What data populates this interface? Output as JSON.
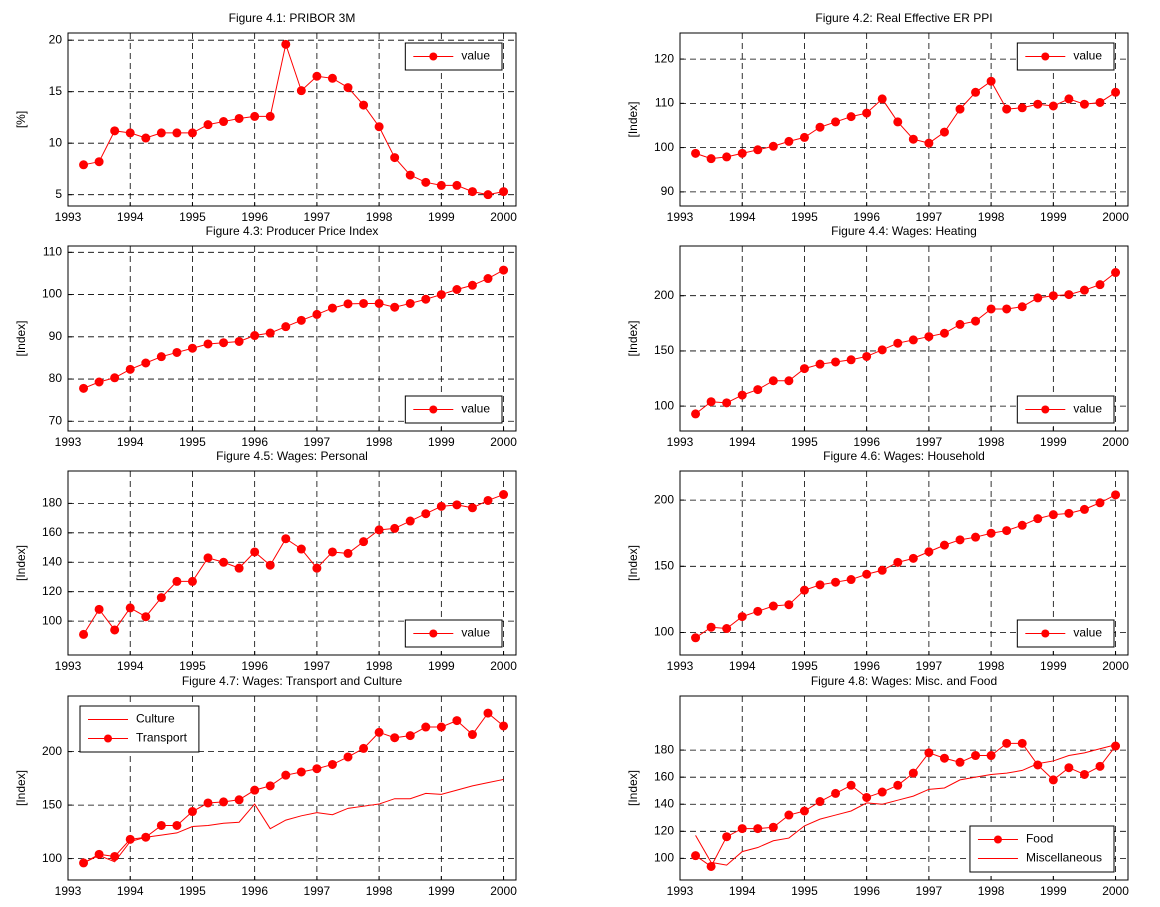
{
  "chart_data": [
    {
      "type": "line",
      "title": "Figure 4.1: PRIBOR 3M",
      "ylabel": "[%]",
      "x": [
        1993.25,
        1993.5,
        1993.75,
        1994,
        1994.25,
        1994.5,
        1994.75,
        1995,
        1995.25,
        1995.5,
        1995.75,
        1996,
        1996.25,
        1996.5,
        1996.75,
        1997,
        1997.25,
        1997.5,
        1997.75,
        1998,
        1998.25,
        1998.5,
        1998.75,
        1999,
        1999.25,
        1999.5,
        1999.75,
        2000
      ],
      "xlim": [
        1993,
        2000.2
      ],
      "xticks": [
        1993,
        1994,
        1995,
        1996,
        1997,
        1998,
        1999,
        2000
      ],
      "ylim": [
        3.9,
        20.7
      ],
      "yticks": [
        5,
        10,
        15,
        20
      ],
      "grid": true,
      "legend": "upper right",
      "series": [
        {
          "name": "value",
          "color": "#ff0000",
          "markers": true,
          "values": [
            7.9,
            8.2,
            11.2,
            11.0,
            10.5,
            11.0,
            11.0,
            11.0,
            11.8,
            12.1,
            12.4,
            12.6,
            12.6,
            19.6,
            15.1,
            16.5,
            16.3,
            15.4,
            13.7,
            11.6,
            8.6,
            6.9,
            6.2,
            5.9,
            5.9,
            5.3,
            5.0,
            5.3
          ]
        }
      ]
    },
    {
      "type": "line",
      "title": "Figure 4.2: Real Effective ER PPI",
      "ylabel": "[Index]",
      "x": [
        1993.25,
        1993.5,
        1993.75,
        1994,
        1994.25,
        1994.5,
        1994.75,
        1995,
        1995.25,
        1995.5,
        1995.75,
        1996,
        1996.25,
        1996.5,
        1996.75,
        1997,
        1997.25,
        1997.5,
        1997.75,
        1998,
        1998.25,
        1998.5,
        1998.75,
        1999,
        1999.25,
        1999.5,
        1999.75,
        2000
      ],
      "xlim": [
        1993,
        2000.2
      ],
      "xticks": [
        1993,
        1994,
        1995,
        1996,
        1997,
        1998,
        1999,
        2000
      ],
      "ylim": [
        86.8,
        125.9
      ],
      "yticks": [
        90,
        100,
        110,
        120
      ],
      "grid": true,
      "legend": "upper right",
      "series": [
        {
          "name": "value",
          "color": "#ff0000",
          "markers": true,
          "values": [
            98.7,
            97.5,
            97.9,
            98.7,
            99.5,
            100.3,
            101.4,
            102.3,
            104.6,
            105.8,
            107.0,
            107.8,
            111.0,
            105.8,
            101.9,
            101.0,
            103.5,
            108.7,
            112.5,
            115.0,
            108.7,
            109.0,
            109.8,
            109.4,
            111.0,
            109.8,
            110.2,
            112.5
          ]
        }
      ]
    },
    {
      "type": "line",
      "title": "Figure 4.3: Producer Price Index",
      "ylabel": "[Index]",
      "x": [
        1993.25,
        1993.5,
        1993.75,
        1994,
        1994.25,
        1994.5,
        1994.75,
        1995,
        1995.25,
        1995.5,
        1995.75,
        1996,
        1996.25,
        1996.5,
        1996.75,
        1997,
        1997.25,
        1997.5,
        1997.75,
        1998,
        1998.25,
        1998.5,
        1998.75,
        1999,
        1999.25,
        1999.5,
        1999.75,
        2000
      ],
      "xlim": [
        1993,
        2000.2
      ],
      "xticks": [
        1993,
        1994,
        1995,
        1996,
        1997,
        1998,
        1999,
        2000
      ],
      "ylim": [
        67.7,
        111.5
      ],
      "yticks": [
        70,
        80,
        90,
        100,
        110
      ],
      "grid": true,
      "legend": "lower right",
      "series": [
        {
          "name": "value",
          "color": "#ff0000",
          "markers": true,
          "values": [
            77.8,
            79.3,
            80.3,
            82.3,
            83.8,
            85.3,
            86.3,
            87.3,
            88.3,
            88.6,
            88.9,
            90.3,
            90.9,
            92.4,
            93.9,
            95.3,
            96.8,
            97.8,
            97.9,
            97.9,
            97.0,
            97.9,
            98.9,
            100.0,
            101.2,
            102.2,
            103.8,
            105.8
          ]
        }
      ]
    },
    {
      "type": "line",
      "title": "Figure 4.4: Wages: Heating",
      "ylabel": "[Index]",
      "x": [
        1993.25,
        1993.5,
        1993.75,
        1994,
        1994.25,
        1994.5,
        1994.75,
        1995,
        1995.25,
        1995.5,
        1995.75,
        1996,
        1996.25,
        1996.5,
        1996.75,
        1997,
        1997.25,
        1997.5,
        1997.75,
        1998,
        1998.25,
        1998.5,
        1998.75,
        1999,
        1999.25,
        1999.5,
        1999.75,
        2000
      ],
      "xlim": [
        1993,
        2000.2
      ],
      "xticks": [
        1993,
        1994,
        1995,
        1996,
        1997,
        1998,
        1999,
        2000
      ],
      "ylim": [
        77.5,
        245
      ],
      "yticks": [
        100,
        150,
        200
      ],
      "grid": true,
      "legend": "lower right",
      "series": [
        {
          "name": "value",
          "color": "#ff0000",
          "markers": true,
          "values": [
            93,
            104,
            103,
            110,
            115,
            123,
            123,
            134,
            138,
            140,
            142,
            145,
            151,
            157,
            160,
            163,
            166,
            174,
            177,
            188,
            188,
            190,
            198,
            200,
            201,
            205,
            210,
            221
          ]
        }
      ]
    },
    {
      "type": "line",
      "title": "Figure 4.5: Wages: Personal",
      "ylabel": "[Index]",
      "x": [
        1993.25,
        1993.5,
        1993.75,
        1994,
        1994.25,
        1994.5,
        1994.75,
        1995,
        1995.25,
        1995.5,
        1995.75,
        1996,
        1996.25,
        1996.5,
        1996.75,
        1997,
        1997.25,
        1997.5,
        1997.75,
        1998,
        1998.25,
        1998.5,
        1998.75,
        1999,
        1999.25,
        1999.5,
        1999.75,
        2000
      ],
      "xlim": [
        1993,
        2000.2
      ],
      "xticks": [
        1993,
        1994,
        1995,
        1996,
        1997,
        1998,
        1999,
        2000
      ],
      "ylim": [
        77,
        202
      ],
      "yticks": [
        100,
        120,
        140,
        160,
        180
      ],
      "grid": true,
      "legend": "lower right",
      "series": [
        {
          "name": "value",
          "color": "#ff0000",
          "markers": true,
          "values": [
            91,
            108,
            94,
            109,
            103,
            116,
            127,
            127,
            143,
            140,
            136,
            147,
            138,
            156,
            149,
            136,
            147,
            146,
            154,
            162,
            163,
            168,
            173,
            178,
            179,
            177,
            182,
            186
          ]
        }
      ]
    },
    {
      "type": "line",
      "title": "Figure 4.6: Wages: Household",
      "ylabel": "[Index]",
      "x": [
        1993.25,
        1993.5,
        1993.75,
        1994,
        1994.25,
        1994.5,
        1994.75,
        1995,
        1995.25,
        1995.5,
        1995.75,
        1996,
        1996.25,
        1996.5,
        1996.75,
        1997,
        1997.25,
        1997.5,
        1997.75,
        1998,
        1998.25,
        1998.5,
        1998.75,
        1999,
        1999.25,
        1999.5,
        1999.75,
        2000
      ],
      "xlim": [
        1993,
        2000.2
      ],
      "xticks": [
        1993,
        1994,
        1995,
        1996,
        1997,
        1998,
        1999,
        2000
      ],
      "ylim": [
        83,
        222
      ],
      "yticks": [
        100,
        150,
        200
      ],
      "grid": true,
      "legend": "lower right",
      "series": [
        {
          "name": "value",
          "color": "#ff0000",
          "markers": true,
          "values": [
            96,
            104,
            103,
            112,
            116,
            120,
            121,
            132,
            136,
            138,
            140,
            144,
            147,
            153,
            156,
            161,
            166,
            170,
            172,
            175,
            177,
            181,
            186,
            189,
            190,
            193,
            198,
            204
          ]
        }
      ]
    },
    {
      "type": "line",
      "title": "Figure 4.7: Wages: Transport and Culture",
      "ylabel": "[Index]",
      "x": [
        1993.25,
        1993.5,
        1993.75,
        1994,
        1994.25,
        1994.5,
        1994.75,
        1995,
        1995.25,
        1995.5,
        1995.75,
        1996,
        1996.25,
        1996.5,
        1996.75,
        1997,
        1997.25,
        1997.5,
        1997.75,
        1998,
        1998.25,
        1998.5,
        1998.75,
        1999,
        1999.25,
        1999.5,
        1999.75,
        2000
      ],
      "xlim": [
        1993,
        2000.2
      ],
      "xticks": [
        1993,
        1994,
        1995,
        1996,
        1997,
        1998,
        1999,
        2000
      ],
      "ylim": [
        80,
        252
      ],
      "yticks": [
        100,
        150,
        200
      ],
      "grid": true,
      "legend": "upper left",
      "series": [
        {
          "name": "Culture",
          "color": "#ff0000",
          "markers": false,
          "values": [
            96,
            103,
            97,
            116,
            120,
            122,
            124,
            130,
            131,
            133,
            134,
            151,
            128,
            136,
            140,
            143,
            141,
            147,
            149,
            151,
            156,
            156,
            161,
            160,
            164,
            168,
            171,
            174
          ]
        },
        {
          "name": "Transport",
          "color": "#ff0000",
          "markers": true,
          "values": [
            96,
            104,
            102,
            118,
            120,
            131,
            131,
            144,
            152,
            153,
            155,
            164,
            168,
            178,
            181,
            184,
            188,
            195,
            203,
            218,
            213,
            215,
            223,
            223,
            229,
            216,
            236,
            224
          ]
        }
      ]
    },
    {
      "type": "line",
      "title": "Figure 4.8: Wages: Misc. and Food",
      "ylabel": "[Index]",
      "x": [
        1993.25,
        1993.5,
        1993.75,
        1994,
        1994.25,
        1994.5,
        1994.75,
        1995,
        1995.25,
        1995.5,
        1995.75,
        1996,
        1996.25,
        1996.5,
        1996.75,
        1997,
        1997.25,
        1997.5,
        1997.75,
        1998,
        1998.25,
        1998.5,
        1998.75,
        1999,
        1999.25,
        1999.5,
        1999.75,
        2000
      ],
      "xlim": [
        1993,
        2000.2
      ],
      "xticks": [
        1993,
        1994,
        1995,
        1996,
        1997,
        1998,
        1999,
        2000
      ],
      "ylim": [
        84,
        220
      ],
      "yticks": [
        100,
        120,
        140,
        160,
        180
      ],
      "grid": true,
      "legend": "lower right",
      "series": [
        {
          "name": "Food",
          "color": "#ff0000",
          "markers": true,
          "values": [
            102,
            94,
            116,
            122,
            122,
            123,
            132,
            135,
            142,
            148,
            154,
            145,
            149,
            154,
            163,
            178,
            174,
            171,
            176,
            176,
            185,
            185,
            169,
            158,
            167,
            162,
            168,
            183
          ]
        },
        {
          "name": "Miscellaneous",
          "color": "#ff0000",
          "markers": false,
          "values": [
            117,
            97,
            95,
            105,
            108,
            113,
            115,
            124,
            129,
            132,
            135,
            141,
            140,
            143,
            146,
            151,
            152,
            158,
            160,
            162,
            163,
            165,
            170,
            172,
            176,
            178,
            181,
            184
          ]
        }
      ]
    }
  ]
}
